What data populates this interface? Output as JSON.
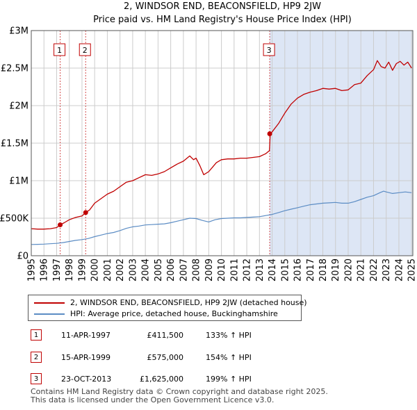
{
  "colors": {
    "price_line": "#c00000",
    "hpi_line": "#5b8cc4",
    "shade": "#dde6f5",
    "grid": "#cccccc",
    "marker_box": "#c00000"
  },
  "chart_data": {
    "type": "line",
    "title": "2, WINDSOR END, BEACONSFIELD, HP9 2JW",
    "subtitle": "Price paid vs. HM Land Registry's House Price Index (HPI)",
    "xlim": [
      1995,
      2025.1
    ],
    "ylim": [
      0,
      3000000
    ],
    "x_ticks": [
      1995,
      1996,
      1997,
      1998,
      1999,
      2000,
      2001,
      2002,
      2003,
      2004,
      2005,
      2006,
      2007,
      2008,
      2009,
      2010,
      2011,
      2012,
      2013,
      2014,
      2015,
      2016,
      2017,
      2018,
      2019,
      2020,
      2021,
      2022,
      2023,
      2024,
      2025
    ],
    "x_tick_labels": [
      "1995",
      "1996",
      "1997",
      "1998",
      "1999",
      "2000",
      "2001",
      "2002",
      "2003",
      "2004",
      "2005",
      "2006",
      "2007",
      "2008",
      "2009",
      "2010",
      "2011",
      "2012",
      "2013",
      "2014",
      "2015",
      "2016",
      "2017",
      "2018",
      "2019",
      "2020",
      "2021",
      "2022",
      "2023",
      "2024",
      "2025"
    ],
    "y_ticks": [
      0,
      500000,
      1000000,
      1500000,
      2000000,
      2500000,
      3000000
    ],
    "y_tick_labels": [
      "£0",
      "£500K",
      "£1M",
      "£1.5M",
      "£2M",
      "£2.5M",
      "£3M"
    ],
    "series": [
      {
        "name": "2, WINDSOR END, BEACONSFIELD, HP9 2JW (detached house)",
        "x": [
          1995.0,
          1995.5,
          1996.0,
          1996.5,
          1997.0,
          1997.28,
          1997.6,
          1998.0,
          1998.5,
          1999.0,
          1999.29,
          1999.6,
          2000.0,
          2000.5,
          2001.0,
          2001.5,
          2002.0,
          2002.5,
          2003.0,
          2003.5,
          2004.0,
          2004.5,
          2005.0,
          2005.5,
          2006.0,
          2006.5,
          2007.0,
          2007.5,
          2007.8,
          2008.0,
          2008.3,
          2008.6,
          2009.0,
          2009.3,
          2009.6,
          2010.0,
          2010.5,
          2011.0,
          2011.5,
          2012.0,
          2012.5,
          2013.0,
          2013.5,
          2013.79,
          2013.85,
          2014.0,
          2014.5,
          2015.0,
          2015.5,
          2016.0,
          2016.5,
          2017.0,
          2017.5,
          2018.0,
          2018.5,
          2019.0,
          2019.5,
          2020.0,
          2020.5,
          2021.0,
          2021.5,
          2022.0,
          2022.3,
          2022.6,
          2022.9,
          2023.2,
          2023.5,
          2023.8,
          2024.1,
          2024.4,
          2024.7,
          2025.0
        ],
        "y": [
          360000,
          355000,
          355000,
          360000,
          375000,
          411500,
          440000,
          480000,
          510000,
          530000,
          575000,
          610000,
          700000,
          760000,
          820000,
          860000,
          920000,
          980000,
          1000000,
          1040000,
          1080000,
          1070000,
          1090000,
          1120000,
          1170000,
          1220000,
          1260000,
          1330000,
          1280000,
          1300000,
          1200000,
          1080000,
          1120000,
          1180000,
          1240000,
          1280000,
          1290000,
          1290000,
          1300000,
          1300000,
          1310000,
          1320000,
          1360000,
          1400000,
          1625000,
          1650000,
          1760000,
          1900000,
          2020000,
          2100000,
          2150000,
          2180000,
          2200000,
          2230000,
          2220000,
          2230000,
          2200000,
          2210000,
          2280000,
          2300000,
          2400000,
          2480000,
          2600000,
          2520000,
          2500000,
          2580000,
          2470000,
          2560000,
          2590000,
          2540000,
          2580000,
          2500000
        ]
      },
      {
        "name": "HPI: Average price, detached house, Buckinghamshire",
        "x": [
          1995.0,
          1995.5,
          1996.0,
          1996.5,
          1997.0,
          1997.5,
          1998.0,
          1998.5,
          1999.0,
          1999.5,
          2000.0,
          2000.5,
          2001.0,
          2001.5,
          2002.0,
          2002.5,
          2003.0,
          2003.5,
          2004.0,
          2004.5,
          2005.0,
          2005.5,
          2006.0,
          2006.5,
          2007.0,
          2007.5,
          2008.0,
          2008.5,
          2009.0,
          2009.5,
          2010.0,
          2010.5,
          2011.0,
          2011.5,
          2012.0,
          2012.5,
          2013.0,
          2013.5,
          2014.0,
          2014.5,
          2015.0,
          2015.5,
          2016.0,
          2016.5,
          2017.0,
          2017.5,
          2018.0,
          2018.5,
          2019.0,
          2019.5,
          2020.0,
          2020.5,
          2021.0,
          2021.5,
          2022.0,
          2022.5,
          2022.8,
          2023.0,
          2023.5,
          2024.0,
          2024.5,
          2025.0
        ],
        "y": [
          150000,
          152000,
          155000,
          160000,
          165000,
          175000,
          190000,
          205000,
          215000,
          230000,
          255000,
          275000,
          295000,
          310000,
          335000,
          365000,
          385000,
          395000,
          410000,
          415000,
          420000,
          425000,
          440000,
          460000,
          480000,
          500000,
          495000,
          470000,
          450000,
          480000,
          495000,
          500000,
          505000,
          505000,
          510000,
          515000,
          520000,
          535000,
          550000,
          575000,
          600000,
          620000,
          640000,
          660000,
          680000,
          690000,
          700000,
          705000,
          710000,
          700000,
          700000,
          720000,
          750000,
          780000,
          800000,
          840000,
          860000,
          850000,
          830000,
          840000,
          850000,
          840000
        ]
      }
    ],
    "sales": [
      {
        "label": "1",
        "x": 1997.28,
        "y": 411500
      },
      {
        "label": "2",
        "x": 1999.29,
        "y": 575000
      },
      {
        "label": "3",
        "x": 2013.81,
        "y": 1625000
      }
    ],
    "shaded_from": 2013.81,
    "grid": true
  },
  "legend": {
    "price_label": "2, WINDSOR END, BEACONSFIELD, HP9 2JW (detached house)",
    "hpi_label": "HPI: Average price, detached house, Buckinghamshire"
  },
  "transactions": [
    {
      "num": "1",
      "date": "11-APR-1997",
      "price": "£411,500",
      "hpi": "133% ↑ HPI"
    },
    {
      "num": "2",
      "date": "15-APR-1999",
      "price": "£575,000",
      "hpi": "154% ↑ HPI"
    },
    {
      "num": "3",
      "date": "23-OCT-2013",
      "price": "£1,625,000",
      "hpi": "199% ↑ HPI"
    }
  ],
  "footer": {
    "line1": "Contains HM Land Registry data © Crown copyright and database right 2025.",
    "line2": "This data is licensed under the Open Government Licence v3.0."
  }
}
